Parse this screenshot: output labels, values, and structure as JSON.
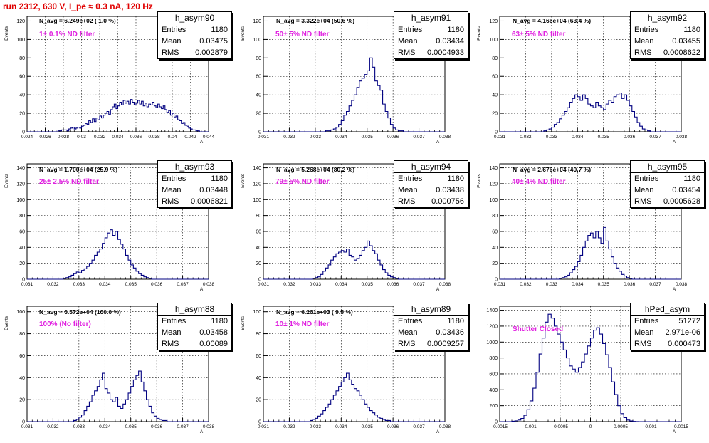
{
  "title": "run 2312,   630 V, I_pe ≈ 0.3 nA, 120 Hz",
  "colors": {
    "title": "#e00000",
    "line": "#000080",
    "annotation": "#e020e0",
    "grid": "#000000"
  },
  "panels": [
    {
      "stats_title": "h_asym90",
      "entries": "1180",
      "mean": "0.03475",
      "rms": "0.002879",
      "navg": "N_avg = 6.249e+02 ( 1.0 %)",
      "filter": "1± 0.1% ND filter",
      "ylabel": "Events",
      "xlabel": "A",
      "xticks": [
        "0.024",
        "0.026",
        "0.028",
        "0.03",
        "0.032",
        "0.034",
        "0.036",
        "0.038",
        "0.04",
        "0.042",
        "0.044"
      ],
      "yticks": [
        "0",
        "20",
        "40",
        "60",
        "80",
        "100",
        "120"
      ]
    },
    {
      "stats_title": "h_asym91",
      "entries": "1180",
      "mean": "0.03434",
      "rms": "0.0004933",
      "navg": "N_avg = 3.322e+04 (50.6 %)",
      "filter": "50± 5% ND filter",
      "ylabel": "Events",
      "xlabel": "A",
      "xticks": [
        "0.031",
        "0.032",
        "0.033",
        "0.034",
        "0.035",
        "0.036",
        "0.037",
        "0.038"
      ],
      "yticks": [
        "0",
        "20",
        "40",
        "60",
        "80",
        "100",
        "120"
      ]
    },
    {
      "stats_title": "h_asym92",
      "entries": "1180",
      "mean": "0.03455",
      "rms": "0.0008622",
      "navg": "N_avg = 4.166e+04 (63.4 %)",
      "filter": "63± 5% ND filter",
      "ylabel": "Events",
      "xlabel": "A",
      "xticks": [
        "0.031",
        "0.032",
        "0.033",
        "0.034",
        "0.035",
        "0.036",
        "0.037",
        "0.038"
      ],
      "yticks": [
        "0",
        "20",
        "40",
        "60",
        "80",
        "100",
        "120"
      ]
    },
    {
      "stats_title": "h_asym93",
      "entries": "1180",
      "mean": "0.03448",
      "rms": "0.0006821",
      "navg": "N_avg = 1.700e+04 (25.9 %)",
      "filter": "25± 2.5% ND filter",
      "ylabel": "Events",
      "xlabel": "A",
      "xticks": [
        "0.031",
        "0.032",
        "0.033",
        "0.034",
        "0.035",
        "0.036",
        "0.037",
        "0.038"
      ],
      "yticks": [
        "0",
        "20",
        "40",
        "60",
        "80",
        "100",
        "120",
        "140"
      ]
    },
    {
      "stats_title": "h_asym94",
      "entries": "1180",
      "mean": "0.03438",
      "rms": "0.000756",
      "navg": "N_avg = 5.268e+04 (80.2 %)",
      "filter": "79± 5% ND filter",
      "ylabel": "Events",
      "xlabel": "A",
      "xticks": [
        "0.031",
        "0.032",
        "0.033",
        "0.034",
        "0.035",
        "0.036",
        "0.037",
        "0.038"
      ],
      "yticks": [
        "0",
        "20",
        "40",
        "60",
        "80",
        "100",
        "120",
        "140"
      ]
    },
    {
      "stats_title": "h_asym95",
      "entries": "1180",
      "mean": "0.03454",
      "rms": "0.0005628",
      "navg": "N_avg = 2.676e+04 (40.7 %)",
      "filter": "40± 4% ND filter",
      "ylabel": "Events",
      "xlabel": "A",
      "xticks": [
        "0.031",
        "0.032",
        "0.033",
        "0.034",
        "0.035",
        "0.036",
        "0.037",
        "0.038"
      ],
      "yticks": [
        "0",
        "20",
        "40",
        "60",
        "80",
        "100",
        "120",
        "140"
      ]
    },
    {
      "stats_title": "h_asym88",
      "entries": "1180",
      "mean": "0.03458",
      "rms": "0.00089",
      "navg": "N_avg = 6.572e+04 (100.0 %)",
      "filter": "100% (No filter)",
      "ylabel": "Events",
      "xlabel": "A",
      "xticks": [
        "0.031",
        "0.032",
        "0.033",
        "0.034",
        "0.035",
        "0.036",
        "0.037",
        "0.038"
      ],
      "yticks": [
        "0",
        "20",
        "40",
        "60",
        "80",
        "100"
      ]
    },
    {
      "stats_title": "h_asym89",
      "entries": "1180",
      "mean": "0.03436",
      "rms": "0.0009257",
      "navg": "N_avg = 6.261e+03 ( 9.5 %)",
      "filter": "10± 1% ND filter",
      "ylabel": "Events",
      "xlabel": "A",
      "xticks": [
        "0.031",
        "0.032",
        "0.033",
        "0.034",
        "0.035",
        "0.036",
        "0.037",
        "0.038"
      ],
      "yticks": [
        "0",
        "20",
        "40",
        "60",
        "80",
        "100"
      ]
    },
    {
      "stats_title": "hPed_asym",
      "entries": "51272",
      "mean": "2.971e-06",
      "rms": "0.000473",
      "navg": "",
      "filter": "Shutter Closed",
      "ylabel": "",
      "xlabel": "A",
      "xticks": [
        "-0.0015",
        "-0.001",
        "-0.0005",
        "0",
        "0.0005",
        "0.001",
        "0.0015"
      ],
      "yticks": [
        "0",
        "200",
        "400",
        "600",
        "800",
        "1000",
        "1200",
        "1400"
      ]
    }
  ],
  "chart_data": [
    {
      "type": "histogram",
      "name": "h_asym90",
      "xlim": [
        0.024,
        0.044
      ],
      "ylim": [
        0,
        125
      ],
      "grid": true,
      "bins_from": 0.024,
      "bin_width": 0.0002,
      "values": [
        0,
        0,
        0,
        0,
        0,
        0,
        0,
        0,
        0,
        0,
        0,
        0,
        0,
        0,
        0,
        0,
        0,
        1,
        1,
        2,
        2,
        2,
        1,
        3,
        4,
        5,
        3,
        4,
        5,
        4,
        6,
        7,
        9,
        8,
        12,
        10,
        14,
        11,
        15,
        13,
        17,
        15,
        18,
        20,
        22,
        19,
        24,
        27,
        30,
        25,
        28,
        32,
        29,
        34,
        31,
        33,
        30,
        35,
        32,
        29,
        31,
        34,
        30,
        33,
        28,
        31,
        27,
        30,
        29,
        32,
        28,
        26,
        30,
        27,
        25,
        28,
        24,
        21,
        23,
        18,
        20,
        16,
        17,
        13,
        12,
        9,
        10,
        7,
        6,
        4,
        3,
        2,
        2,
        1,
        1,
        0,
        0,
        0,
        0,
        0
      ]
    },
    {
      "type": "histogram",
      "name": "h_asym91",
      "xlim": [
        0.031,
        0.038
      ],
      "ylim": [
        0,
        125
      ],
      "grid": true,
      "bins_from": 0.031,
      "bin_width": 0.0001,
      "values": [
        0,
        0,
        0,
        0,
        0,
        0,
        0,
        0,
        0,
        0,
        0,
        0,
        0,
        0,
        0,
        0,
        0,
        0,
        0,
        0,
        0,
        0,
        0,
        0,
        1,
        1,
        2,
        3,
        5,
        8,
        12,
        18,
        22,
        28,
        34,
        40,
        48,
        55,
        58,
        62,
        66,
        80,
        70,
        55,
        50,
        45,
        30,
        22,
        15,
        8,
        4,
        2,
        1,
        1,
        0,
        0,
        0,
        0,
        0,
        0,
        0,
        0,
        0,
        0,
        0,
        0,
        0,
        0,
        0,
        0
      ]
    },
    {
      "type": "histogram",
      "name": "h_asym92",
      "xlim": [
        0.031,
        0.038
      ],
      "ylim": [
        0,
        125
      ],
      "grid": true,
      "bins_from": 0.031,
      "bin_width": 0.0001,
      "values": [
        0,
        0,
        0,
        0,
        0,
        0,
        0,
        0,
        0,
        0,
        0,
        0,
        0,
        0,
        0,
        0,
        0,
        1,
        2,
        3,
        5,
        8,
        10,
        14,
        18,
        22,
        26,
        32,
        36,
        40,
        38,
        34,
        40,
        36,
        30,
        28,
        26,
        32,
        28,
        26,
        24,
        30,
        34,
        32,
        38,
        40,
        42,
        36,
        40,
        34,
        28,
        22,
        16,
        10,
        6,
        3,
        2,
        1,
        0,
        0,
        0,
        0,
        0,
        0,
        0,
        0,
        0,
        0,
        0,
        0
      ]
    },
    {
      "type": "histogram",
      "name": "h_asym93",
      "xlim": [
        0.031,
        0.038
      ],
      "ylim": [
        0,
        145
      ],
      "grid": true,
      "bins_from": 0.031,
      "bin_width": 0.0001,
      "values": [
        0,
        0,
        0,
        0,
        0,
        0,
        0,
        0,
        0,
        0,
        0,
        0,
        0,
        0,
        1,
        2,
        3,
        5,
        7,
        9,
        8,
        11,
        13,
        16,
        20,
        24,
        30,
        34,
        38,
        45,
        52,
        58,
        62,
        55,
        60,
        50,
        44,
        38,
        30,
        24,
        18,
        14,
        10,
        7,
        5,
        3,
        2,
        1,
        0,
        0,
        0,
        0,
        0,
        0,
        0,
        0,
        0,
        0,
        0,
        0,
        0,
        0,
        0,
        0,
        0,
        0,
        0,
        0,
        0,
        0
      ]
    },
    {
      "type": "histogram",
      "name": "h_asym94",
      "xlim": [
        0.031,
        0.038
      ],
      "ylim": [
        0,
        145
      ],
      "grid": true,
      "bins_from": 0.031,
      "bin_width": 0.0001,
      "values": [
        0,
        0,
        0,
        0,
        0,
        0,
        0,
        0,
        0,
        0,
        0,
        0,
        0,
        0,
        0,
        0,
        0,
        0,
        0,
        1,
        2,
        3,
        6,
        10,
        14,
        18,
        24,
        28,
        32,
        34,
        36,
        34,
        38,
        30,
        28,
        24,
        26,
        30,
        36,
        40,
        48,
        42,
        36,
        32,
        24,
        18,
        12,
        8,
        5,
        3,
        2,
        1,
        0,
        0,
        0,
        0,
        0,
        0,
        0,
        0,
        0,
        0,
        0,
        0,
        0,
        0,
        0,
        0,
        0,
        0
      ]
    },
    {
      "type": "histogram",
      "name": "h_asym95",
      "xlim": [
        0.031,
        0.038
      ],
      "ylim": [
        0,
        145
      ],
      "grid": true,
      "bins_from": 0.031,
      "bin_width": 0.0001,
      "values": [
        0,
        0,
        0,
        0,
        0,
        0,
        0,
        0,
        0,
        0,
        0,
        0,
        0,
        0,
        0,
        0,
        0,
        0,
        0,
        0,
        0,
        0,
        0,
        1,
        2,
        3,
        5,
        8,
        12,
        16,
        22,
        30,
        40,
        48,
        55,
        58,
        52,
        60,
        52,
        45,
        65,
        48,
        38,
        28,
        20,
        14,
        10,
        6,
        4,
        2,
        1,
        0,
        0,
        0,
        0,
        0,
        0,
        0,
        0,
        0,
        0,
        0,
        0,
        0,
        0,
        0,
        0,
        0,
        0,
        0
      ]
    },
    {
      "type": "histogram",
      "name": "h_asym88",
      "xlim": [
        0.031,
        0.038
      ],
      "ylim": [
        0,
        105
      ],
      "grid": true,
      "bins_from": 0.031,
      "bin_width": 0.0001,
      "values": [
        0,
        0,
        0,
        0,
        0,
        0,
        0,
        0,
        0,
        0,
        0,
        0,
        0,
        0,
        0,
        0,
        0,
        0,
        1,
        2,
        4,
        6,
        10,
        14,
        18,
        24,
        28,
        32,
        38,
        44,
        30,
        26,
        20,
        18,
        22,
        14,
        12,
        16,
        20,
        26,
        32,
        38,
        42,
        46,
        36,
        28,
        20,
        14,
        8,
        5,
        3,
        2,
        1,
        1,
        0,
        0,
        0,
        0,
        0,
        0,
        0,
        0,
        0,
        0,
        0,
        0,
        0,
        0,
        0,
        0
      ]
    },
    {
      "type": "histogram",
      "name": "h_asym89",
      "xlim": [
        0.031,
        0.038
      ],
      "ylim": [
        0,
        105
      ],
      "grid": true,
      "bins_from": 0.031,
      "bin_width": 0.0001,
      "values": [
        0,
        0,
        0,
        0,
        0,
        0,
        0,
        0,
        0,
        0,
        0,
        0,
        0,
        0,
        0,
        0,
        0,
        0,
        1,
        2,
        3,
        5,
        7,
        10,
        13,
        16,
        20,
        24,
        28,
        32,
        36,
        40,
        44,
        38,
        34,
        30,
        28,
        24,
        20,
        16,
        13,
        10,
        8,
        6,
        4,
        3,
        2,
        1,
        1,
        0,
        0,
        0,
        0,
        0,
        0,
        0,
        0,
        0,
        0,
        0,
        0,
        0,
        0,
        0,
        0,
        0,
        0,
        0,
        0,
        0
      ]
    },
    {
      "type": "histogram",
      "name": "hPed_asym",
      "xlim": [
        -0.0015,
        0.0015
      ],
      "ylim": [
        0,
        1450
      ],
      "grid": true,
      "bins_from": -0.0015,
      "bin_width": 5e-05,
      "values": [
        0,
        0,
        0,
        0,
        5,
        10,
        20,
        40,
        80,
        150,
        260,
        420,
        620,
        850,
        1050,
        1250,
        1350,
        1300,
        1200,
        1100,
        1000,
        900,
        800,
        700,
        660,
        620,
        680,
        750,
        850,
        950,
        1050,
        1150,
        1180,
        1100,
        980,
        840,
        680,
        500,
        340,
        200,
        100,
        50,
        20,
        8,
        3,
        1,
        0,
        0,
        0,
        0,
        0,
        0,
        0,
        0,
        0,
        0,
        0,
        0,
        0,
        0
      ]
    }
  ]
}
